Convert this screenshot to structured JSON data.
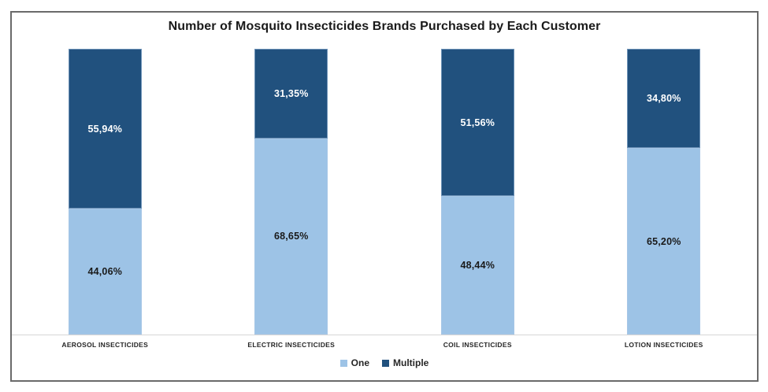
{
  "chart_data": {
    "type": "bar",
    "stacked": true,
    "percent_stacked": true,
    "title": "Number of Mosquito Insecticides Brands Purchased by Each Customer",
    "categories": [
      "AEROSOL INSECTICIDES",
      "ELECTRIC INSECTICIDES",
      "COIL INSECTICIDES",
      "LOTION INSECTICIDES"
    ],
    "series": [
      {
        "name": "One",
        "color": "#9DC3E6",
        "label_color": "#1A1A1A",
        "values": [
          44.06,
          68.65,
          48.44,
          65.2
        ],
        "display_labels": [
          "44,06%",
          "68,65%",
          "48,44%",
          "65,20%"
        ]
      },
      {
        "name": "Multiple",
        "color": "#21517E",
        "label_color": "#FFFFFF",
        "values": [
          55.94,
          31.35,
          51.56,
          34.8
        ],
        "display_labels": [
          "55,94%",
          "31,35%",
          "51,56%",
          "34,80%"
        ]
      }
    ],
    "ylim": [
      0,
      100
    ],
    "grid": false,
    "y_axis_visible": false,
    "legend_position": "bottom",
    "axis_line_color": "#D6D6D6",
    "frame_border_color": "#6A6A6A"
  }
}
